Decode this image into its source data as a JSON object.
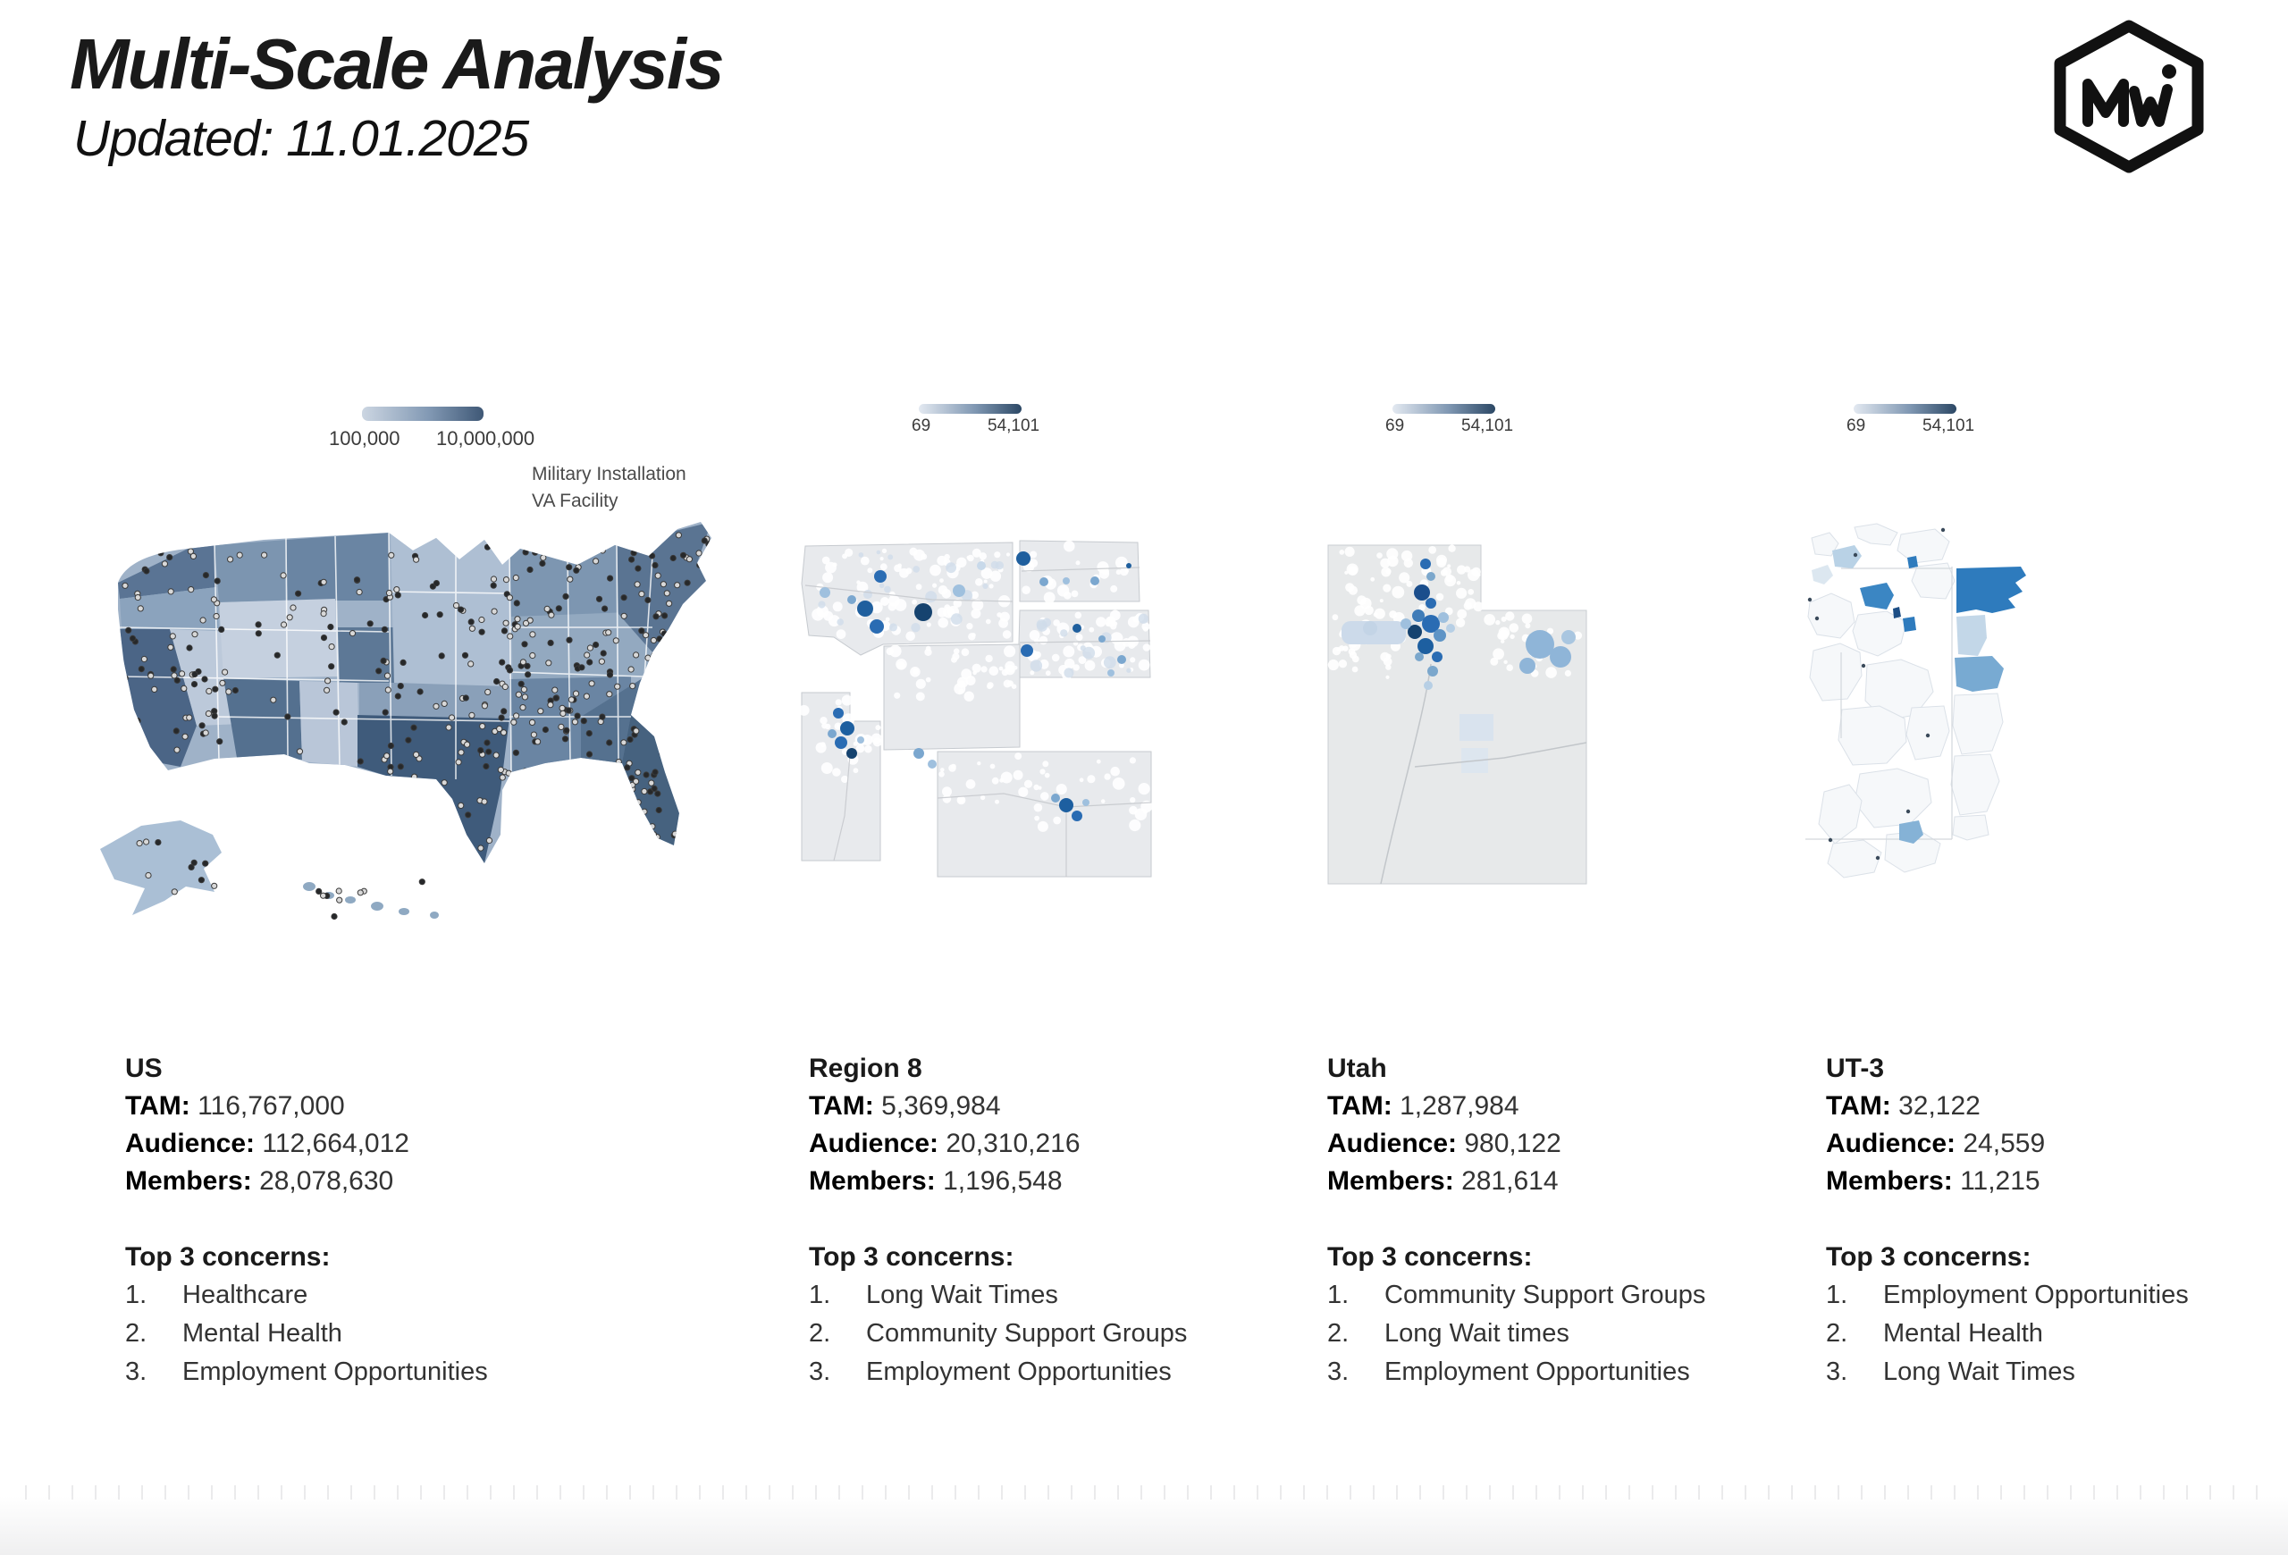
{
  "header": {
    "title": "Multi-Scale Analysis",
    "subtitle": "Updated: 11.01.2025",
    "logo_text": "MWi"
  },
  "labels": {
    "tam": "TAM:",
    "audience": "Audience:",
    "members": "Members:",
    "concerns_title": "Top 3 concerns:",
    "list_numbers": [
      "1.",
      "2.",
      "3."
    ]
  },
  "us_overlay": {
    "line1": "Military Installation",
    "line2": "VA Facility"
  },
  "panels": [
    {
      "name": "US",
      "legend_min": "100,000",
      "legend_max": "10,000,000",
      "tam": "116,767,000",
      "audience": "112,664,012",
      "members": "28,078,630",
      "concerns": [
        "Healthcare",
        "Mental Health",
        "Employment Opportunities"
      ]
    },
    {
      "name": "Region 8",
      "legend_min": "69",
      "legend_max": "54,101",
      "tam": "5,369,984",
      "audience": "20,310,216",
      "members": "1,196,548",
      "concerns": [
        "Long Wait Times",
        "Community Support Groups",
        "Employment Opportunities"
      ]
    },
    {
      "name": "Utah",
      "legend_min": "69",
      "legend_max": "54,101",
      "tam": "1,287,984",
      "audience": "980,122",
      "members": "281,614",
      "concerns": [
        "Community Support Groups",
        "Long Wait times",
        "Employment Opportunities"
      ]
    },
    {
      "name": "UT-3",
      "legend_min": "69",
      "legend_max": "54,101",
      "tam": "32,122",
      "audience": "24,559",
      "members": "11,215",
      "concerns": [
        "Employment Opportunities",
        "Mental Health",
        "Long Wait Times"
      ]
    }
  ],
  "colors": {
    "choropleth_light": "#ccd6e2",
    "choropleth_dark": "#3f5876",
    "tract_legend_light": "#e3e9f1",
    "tract_legend_dark": "#2c4865",
    "accent_blue": "#2a6cb3"
  }
}
